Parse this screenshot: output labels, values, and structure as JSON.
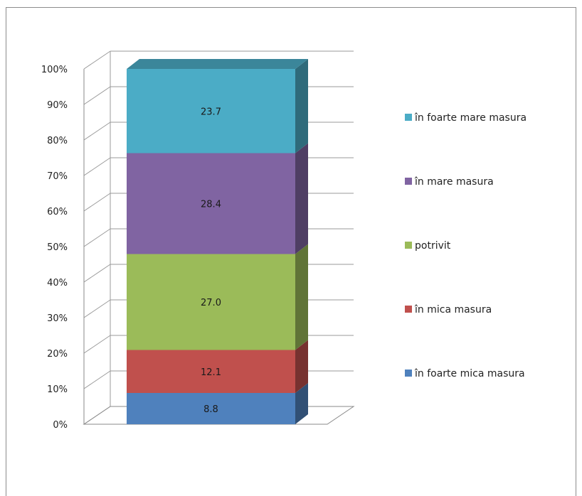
{
  "chart_data": {
    "type": "bar",
    "subtype": "stacked-100-3d",
    "categories": [
      ""
    ],
    "series": [
      {
        "name": "în foarte mica masura",
        "values": [
          8.8
        ],
        "color": "#4F81BD"
      },
      {
        "name": "în mica masura",
        "values": [
          12.1
        ],
        "color": "#C0504D"
      },
      {
        "name": "potrivit",
        "values": [
          27.0
        ],
        "color": "#9BBB59"
      },
      {
        "name": "în mare masura",
        "values": [
          28.4
        ],
        "color": "#8064A2"
      },
      {
        "name": "în foarte mare masura",
        "values": [
          23.7
        ],
        "color": "#4BACC6"
      }
    ],
    "y_ticks": [
      "0%",
      "10%",
      "20%",
      "30%",
      "40%",
      "50%",
      "60%",
      "70%",
      "80%",
      "90%",
      "100%"
    ],
    "ylim": [
      0,
      100
    ],
    "grid": true,
    "legend": "right",
    "title": "",
    "xlabel": "",
    "ylabel": ""
  }
}
